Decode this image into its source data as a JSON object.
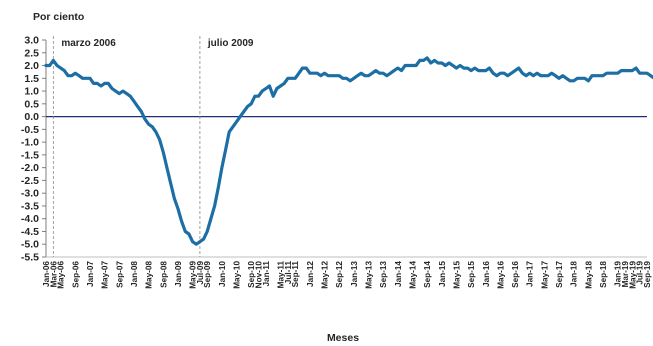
{
  "chart_data": {
    "type": "line",
    "ylabel": "Por ciento",
    "xlabel": "Meses",
    "ylim": [
      -5.5,
      3.0
    ],
    "ytick_step": 0.5,
    "grid": false,
    "colors": {
      "series": "#1c6ea4",
      "zero_line": "#1f2f73",
      "marker": "#888888",
      "text": "#262626"
    },
    "annotations": [
      {
        "text": "marzo 2006",
        "x": "Mar-06"
      },
      {
        "text": "julio 2009",
        "x": "Jul-09"
      }
    ],
    "x_start": "Jan-06",
    "x_end": "Sep-19",
    "x_tick_labels": [
      "Jan-06",
      "May-06",
      "Sep-06",
      "Jan-07",
      "May-07",
      "Sep-07",
      "Jan-08",
      "May-08",
      "Sep-08",
      "Jan-09",
      "May-09",
      "Sep-09",
      "Jan-10",
      "May-10",
      "Sep-10",
      "Jan-11",
      "May-11",
      "Sep-11",
      "Jan-12",
      "May-12",
      "Sep-12",
      "Jan-13",
      "May-13",
      "Sep-13",
      "Jan-14",
      "May-14",
      "Sep-14",
      "Jan-15",
      "May-15",
      "Sep-15",
      "Jan-16",
      "May-16",
      "Sep-16",
      "Jan-17",
      "May-17",
      "Sep-17",
      "Jan-18",
      "May-18",
      "Sep-18",
      "Jan-19",
      "May-19",
      "Sep-19"
    ],
    "x_tick_labels_alt": [
      "Mar-06",
      "Jul-09",
      "Nov-10",
      "Jul-11",
      "Mar-19",
      "Jul-19"
    ],
    "series": [
      {
        "values": [
          [
            0,
            2.0
          ],
          [
            1,
            2.0
          ],
          [
            2,
            2.2
          ],
          [
            3,
            2.0
          ],
          [
            4,
            1.9
          ],
          [
            5,
            1.8
          ],
          [
            6,
            1.6
          ],
          [
            7,
            1.6
          ],
          [
            8,
            1.7
          ],
          [
            9,
            1.6
          ],
          [
            10,
            1.5
          ],
          [
            11,
            1.5
          ],
          [
            12,
            1.5
          ],
          [
            13,
            1.3
          ],
          [
            14,
            1.3
          ],
          [
            15,
            1.2
          ],
          [
            16,
            1.3
          ],
          [
            17,
            1.3
          ],
          [
            18,
            1.1
          ],
          [
            19,
            1.0
          ],
          [
            20,
            0.9
          ],
          [
            21,
            1.0
          ],
          [
            22,
            0.9
          ],
          [
            23,
            0.8
          ],
          [
            24,
            0.6
          ],
          [
            25,
            0.4
          ],
          [
            26,
            0.2
          ],
          [
            27,
            -0.1
          ],
          [
            28,
            -0.3
          ],
          [
            29,
            -0.4
          ],
          [
            30,
            -0.6
          ],
          [
            31,
            -0.9
          ],
          [
            32,
            -1.4
          ],
          [
            33,
            -2.0
          ],
          [
            34,
            -2.6
          ],
          [
            35,
            -3.2
          ],
          [
            36,
            -3.6
          ],
          [
            37,
            -4.1
          ],
          [
            38,
            -4.5
          ],
          [
            39,
            -4.6
          ],
          [
            40,
            -4.9
          ],
          [
            41,
            -5.0
          ],
          [
            42,
            -4.9
          ],
          [
            43,
            -4.8
          ],
          [
            44,
            -4.5
          ],
          [
            45,
            -4.0
          ],
          [
            46,
            -3.5
          ],
          [
            47,
            -2.8
          ],
          [
            48,
            -2.0
          ],
          [
            49,
            -1.3
          ],
          [
            50,
            -0.6
          ],
          [
            51,
            -0.4
          ],
          [
            52,
            -0.2
          ],
          [
            53,
            0.0
          ],
          [
            54,
            0.2
          ],
          [
            55,
            0.4
          ],
          [
            56,
            0.5
          ],
          [
            57,
            0.8
          ],
          [
            58,
            0.8
          ],
          [
            59,
            1.0
          ],
          [
            60,
            1.1
          ],
          [
            61,
            1.2
          ],
          [
            62,
            0.8
          ],
          [
            63,
            1.1
          ],
          [
            64,
            1.2
          ],
          [
            65,
            1.3
          ],
          [
            66,
            1.5
          ],
          [
            67,
            1.5
          ],
          [
            68,
            1.5
          ],
          [
            69,
            1.7
          ],
          [
            70,
            1.9
          ],
          [
            71,
            1.9
          ],
          [
            72,
            1.7
          ],
          [
            73,
            1.7
          ],
          [
            74,
            1.7
          ],
          [
            75,
            1.6
          ],
          [
            76,
            1.7
          ],
          [
            77,
            1.6
          ],
          [
            78,
            1.6
          ],
          [
            79,
            1.6
          ],
          [
            80,
            1.6
          ],
          [
            81,
            1.5
          ],
          [
            82,
            1.5
          ],
          [
            83,
            1.4
          ],
          [
            84,
            1.5
          ],
          [
            85,
            1.6
          ],
          [
            86,
            1.7
          ],
          [
            87,
            1.6
          ],
          [
            88,
            1.6
          ],
          [
            89,
            1.7
          ],
          [
            90,
            1.8
          ],
          [
            91,
            1.7
          ],
          [
            92,
            1.7
          ],
          [
            93,
            1.6
          ],
          [
            94,
            1.7
          ],
          [
            95,
            1.8
          ],
          [
            96,
            1.9
          ],
          [
            97,
            1.8
          ],
          [
            98,
            2.0
          ],
          [
            99,
            2.0
          ],
          [
            100,
            2.0
          ],
          [
            101,
            2.0
          ],
          [
            102,
            2.2
          ],
          [
            103,
            2.2
          ],
          [
            104,
            2.3
          ],
          [
            105,
            2.1
          ],
          [
            106,
            2.2
          ],
          [
            107,
            2.1
          ],
          [
            108,
            2.1
          ],
          [
            109,
            2.0
          ],
          [
            110,
            2.1
          ],
          [
            111,
            2.0
          ],
          [
            112,
            1.9
          ],
          [
            113,
            2.0
          ],
          [
            114,
            1.9
          ],
          [
            115,
            1.9
          ],
          [
            116,
            1.8
          ],
          [
            117,
            1.9
          ],
          [
            118,
            1.8
          ],
          [
            119,
            1.8
          ],
          [
            120,
            1.8
          ],
          [
            121,
            1.9
          ],
          [
            122,
            1.7
          ],
          [
            123,
            1.6
          ],
          [
            124,
            1.7
          ],
          [
            125,
            1.7
          ],
          [
            126,
            1.6
          ],
          [
            127,
            1.7
          ],
          [
            128,
            1.8
          ],
          [
            129,
            1.9
          ],
          [
            130,
            1.7
          ],
          [
            131,
            1.6
          ],
          [
            132,
            1.7
          ],
          [
            133,
            1.6
          ],
          [
            134,
            1.7
          ],
          [
            135,
            1.6
          ],
          [
            136,
            1.6
          ],
          [
            137,
            1.6
          ],
          [
            138,
            1.7
          ],
          [
            139,
            1.6
          ],
          [
            140,
            1.5
          ],
          [
            141,
            1.6
          ],
          [
            142,
            1.5
          ],
          [
            143,
            1.4
          ],
          [
            144,
            1.4
          ],
          [
            145,
            1.5
          ],
          [
            146,
            1.5
          ],
          [
            147,
            1.5
          ],
          [
            148,
            1.4
          ],
          [
            149,
            1.6
          ],
          [
            150,
            1.6
          ],
          [
            151,
            1.6
          ],
          [
            152,
            1.6
          ],
          [
            153,
            1.7
          ],
          [
            154,
            1.7
          ],
          [
            155,
            1.7
          ],
          [
            156,
            1.7
          ],
          [
            157,
            1.8
          ],
          [
            158,
            1.8
          ],
          [
            159,
            1.8
          ],
          [
            160,
            1.8
          ],
          [
            161,
            1.9
          ],
          [
            162,
            1.7
          ],
          [
            163,
            1.7
          ],
          [
            164,
            1.7
          ],
          [
            165,
            1.6
          ],
          [
            166,
            1.5
          ],
          [
            167,
            1.4
          ],
          [
            168,
            1.4
          ],
          [
            169,
            1.4
          ]
        ]
      }
    ]
  }
}
